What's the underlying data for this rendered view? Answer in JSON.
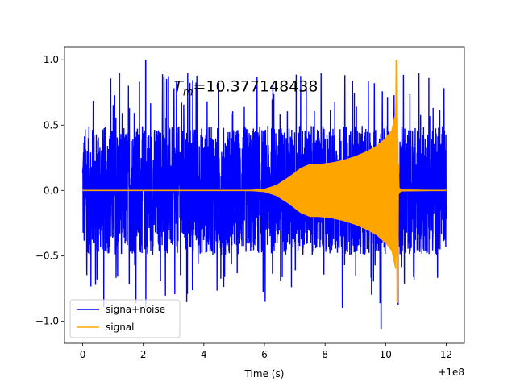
{
  "chart_data": {
    "type": "line",
    "title": "",
    "xlabel": "Time (s)",
    "ylabel": "",
    "x_offset_label": "+1e8",
    "xlim": [
      -0.6,
      12.6
    ],
    "ylim": [
      -1.17,
      1.1
    ],
    "x_ticks": [
      0,
      2,
      4,
      6,
      8,
      10,
      12
    ],
    "x_tick_labels": [
      "0",
      "2",
      "4",
      "6",
      "8",
      "10",
      "12"
    ],
    "y_ticks": [
      1.0,
      0.5,
      0.0,
      -0.5,
      -1.0
    ],
    "y_tick_labels": [
      "1.0",
      "0.5",
      "0.0",
      "−0.5",
      "−1.0"
    ],
    "grid": false,
    "legend_position": "lower-left",
    "annotation": {
      "base": "T",
      "subscript": "m",
      "value": "=10.377148438",
      "x": 3.0,
      "y": 0.8
    },
    "series": [
      {
        "name": "signa+noise",
        "color": "#0000ff",
        "description_points": {
          "x_start": 0.0,
          "x_end": 12.0,
          "typical_amplitude": 0.45,
          "max": 1.0,
          "min": -1.06
        }
      },
      {
        "name": "signal",
        "color": "#ffa500",
        "envelope": {
          "x": [
            0.0,
            5.0,
            5.6,
            6.0,
            6.4,
            6.8,
            7.2,
            7.5,
            7.8,
            8.2,
            8.6,
            9.0,
            9.4,
            9.7,
            10.0,
            10.2,
            10.33,
            10.377,
            10.42,
            10.5,
            12.0
          ],
          "y": [
            0.0,
            0.0,
            0.003,
            0.01,
            0.04,
            0.1,
            0.17,
            0.2,
            0.2,
            0.21,
            0.23,
            0.26,
            0.3,
            0.34,
            0.4,
            0.46,
            0.6,
            1.0,
            0.03,
            0.005,
            0.0
          ]
        },
        "max": 1.0,
        "min": -0.86
      }
    ]
  }
}
